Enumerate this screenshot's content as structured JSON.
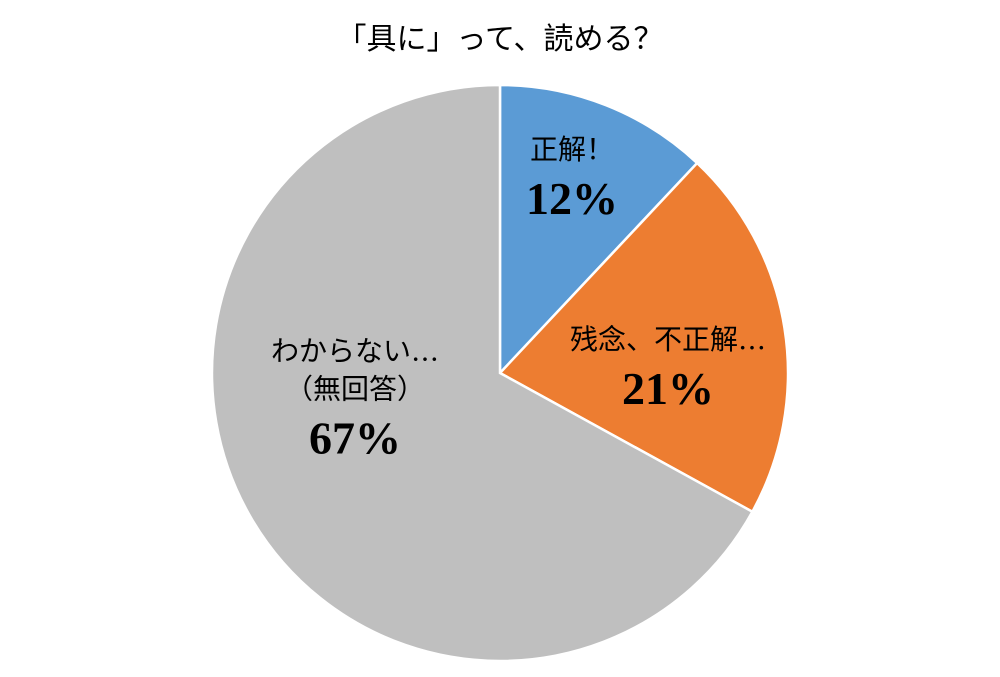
{
  "chart_data": {
    "type": "pie",
    "title": "「具に」って、読める？",
    "categories": [
      "正解！",
      "残念、不正解…",
      "わからない…\n（無回答）"
    ],
    "values": [
      12,
      21,
      67
    ],
    "value_labels": [
      "12%",
      "21%",
      "67%"
    ],
    "colors": [
      "#5b9bd5",
      "#ed7d31",
      "#bfbfbf"
    ]
  }
}
